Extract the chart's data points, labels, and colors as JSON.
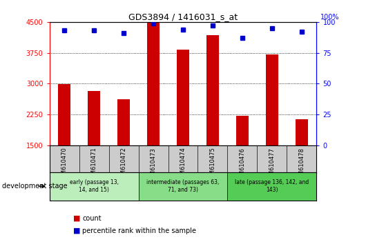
{
  "title": "GDS3894 / 1416031_s_at",
  "samples": [
    "GSM610470",
    "GSM610471",
    "GSM610472",
    "GSM610473",
    "GSM610474",
    "GSM610475",
    "GSM610476",
    "GSM610477",
    "GSM610478"
  ],
  "counts": [
    2990,
    2820,
    2620,
    4480,
    3830,
    4180,
    2210,
    3710,
    2130
  ],
  "percentiles": [
    93,
    93,
    91,
    99,
    94,
    97,
    87,
    95,
    92
  ],
  "ylim_left": [
    1500,
    4500
  ],
  "ylim_right": [
    0,
    100
  ],
  "yticks_left": [
    1500,
    2250,
    3000,
    3750,
    4500
  ],
  "yticks_right": [
    0,
    25,
    50,
    75,
    100
  ],
  "bar_color": "#cc0000",
  "dot_color": "#0000cc",
  "groups": [
    {
      "label": "early (passage 13,\n14, and 15)",
      "start": 0,
      "end": 3,
      "color": "#bbeebb"
    },
    {
      "label": "intermediate (passages 63,\n71, and 73)",
      "start": 3,
      "end": 6,
      "color": "#88dd88"
    },
    {
      "label": "late (passage 136, 142, and\n143)",
      "start": 6,
      "end": 9,
      "color": "#55cc55"
    }
  ],
  "tick_area_color": "#cccccc",
  "grid_color": "#000000",
  "dev_stage_label": "development stage",
  "legend_items": [
    {
      "color": "#cc0000",
      "label": "count"
    },
    {
      "color": "#0000cc",
      "label": "percentile rank within the sample"
    }
  ]
}
